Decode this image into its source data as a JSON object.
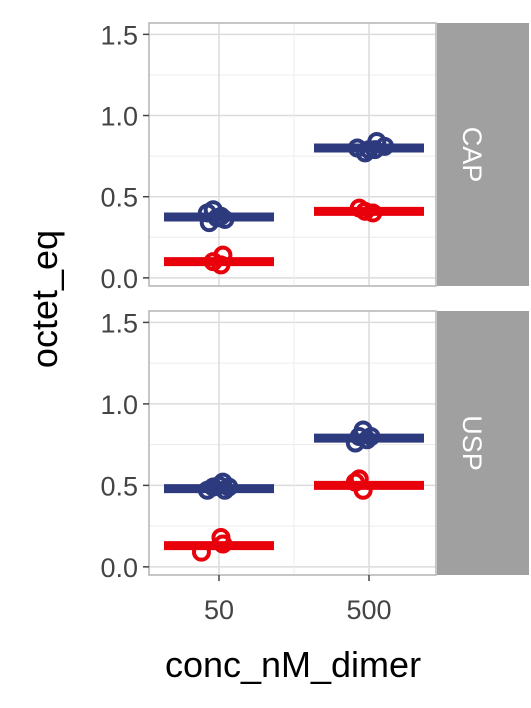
{
  "chart_data": {
    "type": "scatter",
    "ylabel": "octet_eq",
    "xlabel": "conc_nM_dimer",
    "categories": [
      "50",
      "500"
    ],
    "ylim": [
      -0.05,
      1.57
    ],
    "y_ticks": [
      "0.0",
      "0.5",
      "1.0",
      "1.5"
    ],
    "grid": true,
    "legend": "none",
    "series_colors": {
      "blue": "#2e3a7e",
      "red": "#e8000b"
    },
    "panels": [
      {
        "strip": "CAP",
        "groups": [
          {
            "category": "50",
            "color": "blue",
            "mean": 0.375,
            "points": [
              [
                -0.12,
                0.4
              ],
              [
                -0.1,
                0.34
              ],
              [
                -0.06,
                0.42
              ],
              [
                -0.02,
                0.37
              ],
              [
                0.02,
                0.38
              ],
              [
                0.06,
                0.36
              ]
            ]
          },
          {
            "category": "50",
            "color": "red",
            "mean": 0.1,
            "points": [
              [
                -0.06,
                0.1
              ],
              [
                0.02,
                0.08
              ],
              [
                0.04,
                0.14
              ]
            ]
          },
          {
            "category": "500",
            "color": "blue",
            "mean": 0.8,
            "points": [
              [
                -0.12,
                0.8
              ],
              [
                -0.04,
                0.77
              ],
              [
                0.0,
                0.79
              ],
              [
                0.06,
                0.79
              ],
              [
                0.08,
                0.84
              ],
              [
                0.16,
                0.81
              ]
            ]
          },
          {
            "category": "500",
            "color": "red",
            "mean": 0.41,
            "points": [
              [
                -0.1,
                0.43
              ],
              [
                -0.04,
                0.41
              ],
              [
                0.04,
                0.4
              ]
            ]
          }
        ]
      },
      {
        "strip": "USP",
        "groups": [
          {
            "category": "50",
            "color": "blue",
            "mean": 0.48,
            "points": [
              [
                -0.12,
                0.47
              ],
              [
                -0.06,
                0.49
              ],
              [
                0.0,
                0.5
              ],
              [
                0.04,
                0.52
              ],
              [
                0.06,
                0.47
              ],
              [
                0.1,
                0.49
              ]
            ]
          },
          {
            "category": "50",
            "color": "red",
            "mean": 0.13,
            "points": [
              [
                -0.18,
                0.09
              ],
              [
                0.02,
                0.18
              ],
              [
                0.04,
                0.14
              ]
            ]
          },
          {
            "category": "500",
            "color": "blue",
            "mean": 0.79,
            "points": [
              [
                -0.14,
                0.76
              ],
              [
                -0.1,
                0.8
              ],
              [
                -0.06,
                0.84
              ],
              [
                -0.02,
                0.78
              ],
              [
                0.02,
                0.8
              ]
            ]
          },
          {
            "category": "500",
            "color": "red",
            "mean": 0.5,
            "points": [
              [
                -0.14,
                0.52
              ],
              [
                -0.1,
                0.54
              ],
              [
                -0.06,
                0.47
              ]
            ]
          }
        ]
      }
    ]
  }
}
